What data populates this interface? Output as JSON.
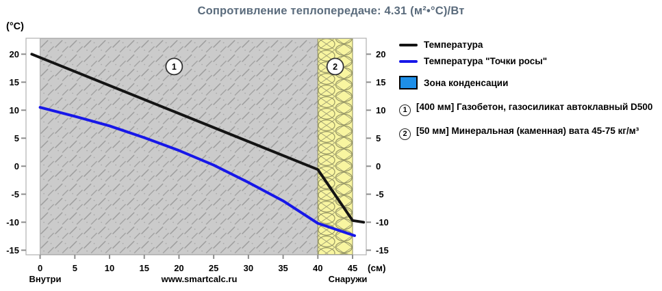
{
  "title": {
    "text": "Сопротивление теплопередаче: 4.31 (м²•°С)/Вт",
    "color": "#5a6b7c"
  },
  "axes": {
    "y_unit_label": "(°С)",
    "x_unit_label": "(см)",
    "y_ticks": [
      20,
      15,
      10,
      5,
      0,
      -5,
      -10,
      -15
    ],
    "x_ticks": [
      0,
      5,
      10,
      15,
      20,
      25,
      30,
      35,
      40,
      45
    ]
  },
  "footer": {
    "inside_label": "Внутри",
    "watermark": "www.smartcalc.ru",
    "outside_label": "Снаружи"
  },
  "legend": {
    "temperature": {
      "label": "Температура",
      "color": "#141414"
    },
    "dew_point": {
      "label": "Температура \"Точки росы\"",
      "color": "#1717e8"
    },
    "condensation_zone": {
      "label": "Зона конденсации",
      "color": "#1e8fe8"
    },
    "layers": [
      {
        "num": "1",
        "label": "[400 мм] Газобетон, газосиликат автоклавный D500"
      },
      {
        "num": "2",
        "label": "[50 мм] Минеральная (каменная) вата 45-75 кг/м³"
      }
    ]
  },
  "chart_data": {
    "type": "line",
    "title": "Сопротивление теплопередаче: 4.31 (м²•°С)/Вт",
    "xlabel": "(см)",
    "ylabel": "(°С)",
    "xlim": [
      -2,
      47
    ],
    "ylim": [
      -17.5,
      22.8
    ],
    "x_ticks": [
      0,
      5,
      10,
      15,
      20,
      25,
      30,
      35,
      40,
      45
    ],
    "y_ticks": [
      20,
      15,
      10,
      5,
      0,
      -5,
      -10,
      -15
    ],
    "grid": false,
    "legend_position": "right",
    "series": [
      {
        "name": "Температура",
        "color": "#141414",
        "points": [
          [
            -1.2,
            20.0
          ],
          [
            40,
            -0.6
          ],
          [
            45,
            -9.7
          ],
          [
            46.6,
            -10.0
          ]
        ]
      },
      {
        "name": "Температура \"Точки росы\"",
        "color": "#1717e8",
        "points": [
          [
            0,
            10.5
          ],
          [
            5,
            8.9
          ],
          [
            10,
            7.2
          ],
          [
            15,
            5.1
          ],
          [
            20,
            2.8
          ],
          [
            25,
            0.2
          ],
          [
            30,
            -2.9
          ],
          [
            35,
            -6.2
          ],
          [
            40,
            -10.2
          ],
          [
            45.3,
            -12.4
          ]
        ]
      }
    ],
    "zones": [
      {
        "num": "1",
        "range_cm": [
          0,
          40
        ],
        "fill": "gray-hatch",
        "marker_x_cm": 19.3,
        "marker_t": 17.8,
        "label": "[400 мм] Газобетон, газосиликат автоклавный D500"
      },
      {
        "num": "2",
        "range_cm": [
          40,
          45
        ],
        "fill": "yellow-wool",
        "marker_x_cm": 42.5,
        "marker_t": 17.8,
        "label": "[50 мм] Минеральная (каменная) вата 45-75 кг/м³"
      }
    ]
  }
}
